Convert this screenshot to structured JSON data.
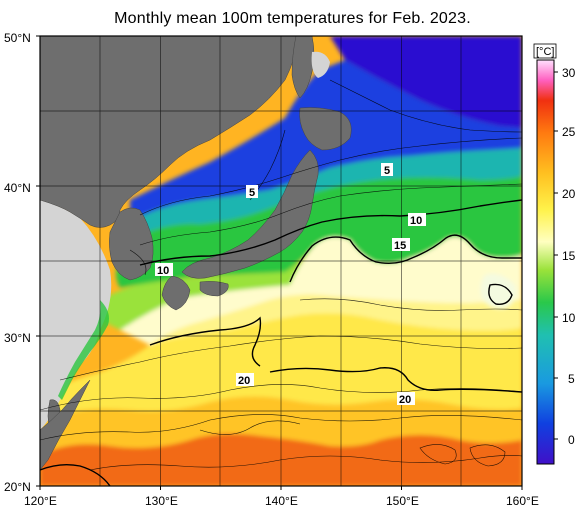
{
  "title": "Monthly mean 100m temperatures for Feb. 2023.",
  "map": {
    "lat_ticks": [
      "50°N",
      "40°N",
      "30°N",
      "20°N"
    ],
    "lon_ticks": [
      "120°E",
      "130°E",
      "140°E",
      "150°E",
      "160°E"
    ],
    "contour_labels": [
      "5",
      "5",
      "10",
      "10",
      "15",
      "20",
      "20"
    ]
  },
  "colorbar": {
    "unit": "[°C]",
    "ticks": [
      "30",
      "25",
      "20",
      "15",
      "10",
      "5",
      "0"
    ],
    "range": [
      -2,
      32
    ],
    "colors": [
      "#4010c8",
      "#1040e0",
      "#1a9ae0",
      "#20c0b0",
      "#2ac84a",
      "#9ae23a",
      "#ffffc0",
      "#fff24a",
      "#ffc020",
      "#ff7a10",
      "#f03010",
      "#ff60c0",
      "#ffe0ff"
    ]
  },
  "colors": {
    "land": "#6e6e6e",
    "land_far": "#d4d4d4",
    "deep_blue": "#2a10d0",
    "blue": "#1c40e0",
    "teal": "#1fb5b0",
    "green": "#2cc640",
    "light_green": "#9ae23a",
    "cream": "#fffccc",
    "yellow": "#ffe640",
    "orange": "#ffb422",
    "red_orange": "#f26a18"
  }
}
